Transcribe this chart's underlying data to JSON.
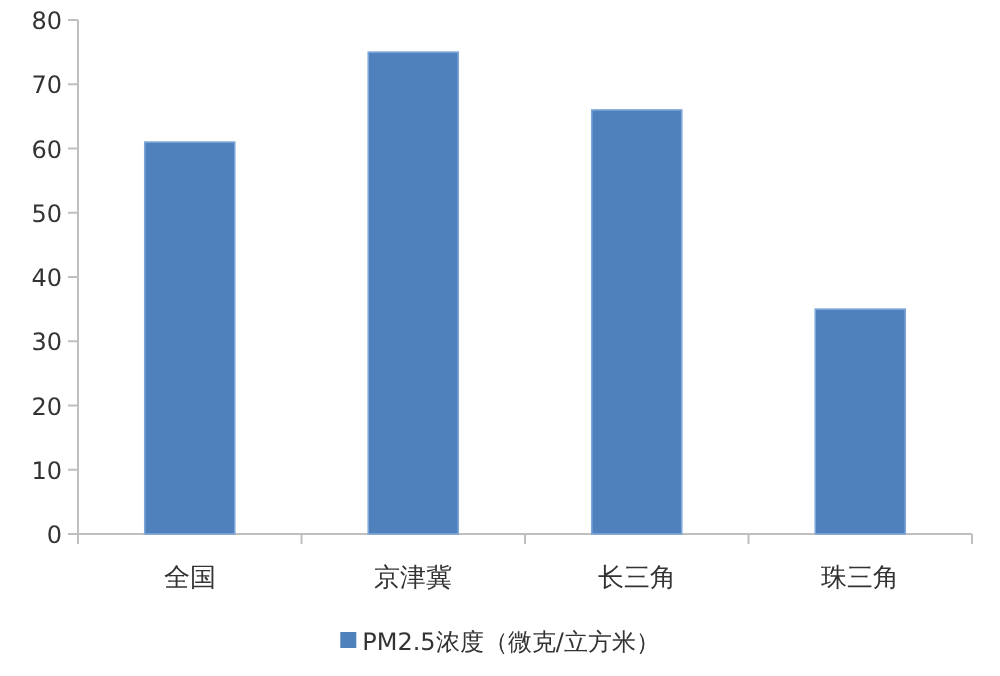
{
  "chart_data": {
    "type": "bar",
    "categories": [
      "全国",
      "京津冀",
      "长三角",
      "珠三角"
    ],
    "series": [
      {
        "name": "PM2.5浓度（微克/立方米）",
        "color": "#4f81bd",
        "values": [
          61,
          75,
          66,
          35
        ]
      }
    ],
    "ylim": [
      0,
      80
    ],
    "yticks": [
      0,
      10,
      20,
      30,
      40,
      50,
      60,
      70,
      80
    ],
    "grid": false,
    "legend": "bottom"
  }
}
